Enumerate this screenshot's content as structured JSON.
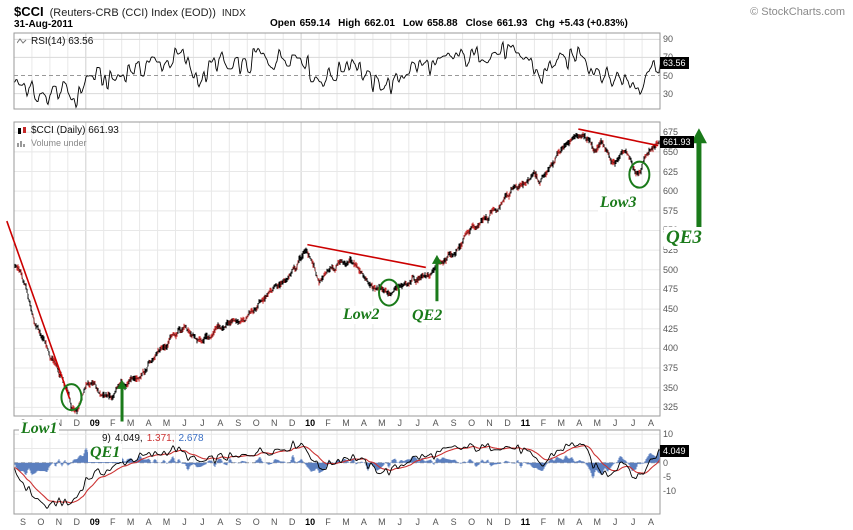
{
  "header": {
    "symbol": "$CCI",
    "name": "(Reuters-CRB (CCI) Index (EOD))",
    "exchange": "INDX",
    "copyright": "© StockCharts.com",
    "date": "31-Aug-2011",
    "quote": [
      {
        "label": "Open",
        "value": "659.14"
      },
      {
        "label": "High",
        "value": "662.01"
      },
      {
        "label": "Low",
        "value": "658.88"
      },
      {
        "label": "Close",
        "value": "661.93"
      },
      {
        "label": "Chg",
        "value": "+5.43 (+0.83%)"
      }
    ]
  },
  "rsi_panel": {
    "legend": "RSI(14) 63.56",
    "current_label": "63.56",
    "ticks": [
      90,
      70,
      50,
      30
    ]
  },
  "main_panel": {
    "legend": "$CCI (Daily) 661.93",
    "sublegend": "Volume under",
    "current_label": "661.93",
    "ticks": [
      675,
      650,
      625,
      600,
      575,
      550,
      525,
      500,
      475,
      450,
      425,
      400,
      375,
      350,
      325
    ]
  },
  "macd_panel": {
    "legend_prefix": "9)",
    "macd_value": "4.049,",
    "signal_value": "1.371,",
    "hist_value": "2.678",
    "current_label": "4.049",
    "ticks": [
      10,
      5,
      0,
      -5,
      -10
    ]
  },
  "x_axis": {
    "labels": [
      "S",
      "O",
      "N",
      "D",
      "09",
      "F",
      "M",
      "A",
      "M",
      "J",
      "J",
      "A",
      "S",
      "O",
      "N",
      "D",
      "10",
      "F",
      "M",
      "A",
      "M",
      "J",
      "J",
      "A",
      "S",
      "O",
      "N",
      "D",
      "11",
      "F",
      "M",
      "A",
      "M",
      "J",
      "J",
      "A"
    ],
    "year_labels": [
      "09",
      "10",
      "11"
    ]
  },
  "annotations": {
    "low1": "Low1",
    "qe1": "QE1",
    "low2": "Low2",
    "qe2": "QE2",
    "low3": "Low3",
    "qe3": "QE3"
  },
  "colors": {
    "up_candle": "#000000",
    "down_candle": "#c62828",
    "trendline": "#cc0000",
    "annotation_green": "#1a7a1a",
    "macd_line": "#000000",
    "signal_line": "#cc3333",
    "histogram": "#5b7fbf",
    "label_box_bg": "#000000",
    "label_box_text": "#ffffff"
  },
  "chart_data": [
    {
      "id": "price",
      "type": "candlestick",
      "title": "$CCI (Daily)",
      "x_unit": "months since Sep-2008 (0 = Sep-2008, 36 = end Aug-2011)",
      "x_range": [
        0,
        36
      ],
      "ylim": [
        314,
        688
      ],
      "y_ticks": [
        675,
        650,
        625,
        600,
        575,
        550,
        525,
        500,
        475,
        450,
        425,
        400,
        375,
        350,
        325
      ],
      "last_close": 661.93,
      "anchors": [
        [
          0,
          505
        ],
        [
          0.4,
          492
        ],
        [
          0.8,
          462
        ],
        [
          1.2,
          432
        ],
        [
          1.6,
          415
        ],
        [
          2,
          392
        ],
        [
          2.4,
          372
        ],
        [
          2.8,
          352
        ],
        [
          3.2,
          326
        ],
        [
          3.5,
          322
        ],
        [
          3.8,
          342
        ],
        [
          4.1,
          356
        ],
        [
          4.5,
          350
        ],
        [
          5,
          342
        ],
        [
          5.5,
          338
        ],
        [
          6,
          352
        ],
        [
          6.5,
          360
        ],
        [
          7,
          366
        ],
        [
          7.5,
          380
        ],
        [
          8,
          394
        ],
        [
          8.5,
          404
        ],
        [
          9,
          420
        ],
        [
          9.4,
          428
        ],
        [
          9.8,
          420
        ],
        [
          10.2,
          410
        ],
        [
          10.6,
          416
        ],
        [
          11,
          420
        ],
        [
          11.5,
          426
        ],
        [
          12,
          430
        ],
        [
          12.5,
          428
        ],
        [
          13,
          444
        ],
        [
          13.5,
          456
        ],
        [
          14,
          464
        ],
        [
          14.5,
          474
        ],
        [
          15,
          482
        ],
        [
          15.5,
          494
        ],
        [
          16,
          512
        ],
        [
          16.35,
          528
        ],
        [
          16.7,
          506
        ],
        [
          17,
          486
        ],
        [
          17.4,
          494
        ],
        [
          17.8,
          500
        ],
        [
          18.2,
          505
        ],
        [
          18.6,
          508
        ],
        [
          19,
          504
        ],
        [
          19.4,
          497
        ],
        [
          19.8,
          488
        ],
        [
          20.2,
          478
        ],
        [
          20.6,
          473
        ],
        [
          21,
          468
        ],
        [
          21.4,
          474
        ],
        [
          21.8,
          480
        ],
        [
          22.2,
          486
        ],
        [
          22.6,
          492
        ],
        [
          23,
          494
        ],
        [
          23.4,
          503
        ],
        [
          23.8,
          510
        ],
        [
          24.2,
          518
        ],
        [
          24.6,
          528
        ],
        [
          25,
          538
        ],
        [
          25.4,
          548
        ],
        [
          25.8,
          556
        ],
        [
          26.2,
          564
        ],
        [
          26.6,
          572
        ],
        [
          27,
          582
        ],
        [
          27.4,
          592
        ],
        [
          27.8,
          600
        ],
        [
          28.2,
          606
        ],
        [
          28.6,
          614
        ],
        [
          29,
          622
        ],
        [
          29.3,
          612
        ],
        [
          29.7,
          626
        ],
        [
          30.1,
          638
        ],
        [
          30.5,
          646
        ],
        [
          30.9,
          654
        ],
        [
          31.3,
          664
        ],
        [
          31.7,
          674
        ],
        [
          32,
          668
        ],
        [
          32.3,
          652
        ],
        [
          32.7,
          660
        ],
        [
          33.1,
          650
        ],
        [
          33.5,
          642
        ],
        [
          33.9,
          650
        ],
        [
          34.3,
          640
        ],
        [
          34.6,
          624
        ],
        [
          34.8,
          618
        ],
        [
          35,
          634
        ],
        [
          35.3,
          646
        ],
        [
          35.6,
          652
        ],
        [
          35.97,
          661.93
        ]
      ],
      "trendlines": [
        [
          [
            -0.4,
            562
          ],
          [
            3.1,
            336
          ]
        ],
        [
          [
            16.35,
            532
          ],
          [
            22.95,
            503
          ]
        ],
        [
          [
            31.45,
            679
          ],
          [
            35.9,
            658
          ]
        ]
      ],
      "event_marks": [
        {
          "label": "Low1",
          "type": "circle",
          "t": 3.2,
          "value": 338
        },
        {
          "label": "QE1",
          "type": "arrow-up",
          "t": 6.02,
          "value_from": 307,
          "value_to": 360
        },
        {
          "label": "Low2",
          "type": "circle",
          "t": 20.9,
          "value": 471
        },
        {
          "label": "QE2",
          "type": "arrow-up",
          "t": 23.57,
          "value_from": 460,
          "value_to": 519
        },
        {
          "label": "Low3",
          "type": "circle",
          "t": 34.85,
          "value": 621
        },
        {
          "label": "QE3",
          "type": "arrow-up",
          "t": 38.17,
          "value_from": 545,
          "value_to": 680
        }
      ]
    },
    {
      "id": "rsi",
      "type": "line",
      "title": "RSI(14)",
      "ylim": [
        13,
        97
      ],
      "y_ticks": [
        90,
        70,
        50,
        30
      ],
      "midline": 50,
      "overbought": 70,
      "oversold": 30,
      "last_value": 63.56,
      "anchors": [
        [
          0,
          42
        ],
        [
          0.8,
          32
        ],
        [
          1.6,
          28
        ],
        [
          2.4,
          30
        ],
        [
          3.2,
          26
        ],
        [
          3.6,
          32
        ],
        [
          4,
          48
        ],
        [
          4.6,
          42
        ],
        [
          5.2,
          40
        ],
        [
          5.8,
          50
        ],
        [
          6.4,
          58
        ],
        [
          7,
          60
        ],
        [
          7.6,
          62
        ],
        [
          8.2,
          66
        ],
        [
          8.8,
          68
        ],
        [
          9.4,
          70
        ],
        [
          10,
          52
        ],
        [
          10.6,
          48
        ],
        [
          11.2,
          58
        ],
        [
          11.8,
          60
        ],
        [
          12.4,
          58
        ],
        [
          13,
          64
        ],
        [
          13.6,
          68
        ],
        [
          14.2,
          66
        ],
        [
          14.8,
          70
        ],
        [
          15.4,
          72
        ],
        [
          16,
          74
        ],
        [
          16.4,
          66
        ],
        [
          17,
          42
        ],
        [
          17.6,
          52
        ],
        [
          18.2,
          58
        ],
        [
          18.8,
          62
        ],
        [
          19.4,
          54
        ],
        [
          20,
          46
        ],
        [
          20.6,
          42
        ],
        [
          21.2,
          40
        ],
        [
          21.8,
          52
        ],
        [
          22.4,
          58
        ],
        [
          23,
          60
        ],
        [
          23.6,
          64
        ],
        [
          24.2,
          68
        ],
        [
          24.8,
          72
        ],
        [
          25.4,
          74
        ],
        [
          26,
          70
        ],
        [
          26.6,
          72
        ],
        [
          27.2,
          74
        ],
        [
          27.8,
          70
        ],
        [
          28.4,
          68
        ],
        [
          29,
          58
        ],
        [
          29.4,
          50
        ],
        [
          30,
          64
        ],
        [
          30.6,
          70
        ],
        [
          31.2,
          72
        ],
        [
          31.8,
          74
        ],
        [
          32.2,
          60
        ],
        [
          32.8,
          48
        ],
        [
          33.4,
          42
        ],
        [
          34,
          52
        ],
        [
          34.6,
          38
        ],
        [
          34.9,
          32
        ],
        [
          35.3,
          55
        ],
        [
          35.7,
          60
        ],
        [
          35.97,
          63.56
        ]
      ]
    },
    {
      "id": "macd",
      "type": "line+histogram",
      "legend_visible": "9) 4.049, 1.371, 2.678",
      "ylim": [
        -18,
        11.5
      ],
      "y_ticks": [
        10,
        5,
        0,
        -5,
        -10
      ],
      "last_values": {
        "macd": 4.049,
        "signal": 1.371,
        "histogram": 2.678
      },
      "anchors": [
        [
          0,
          -3
        ],
        [
          0.5,
          -7
        ],
        [
          1,
          -11
        ],
        [
          1.5,
          -14
        ],
        [
          2,
          -16
        ],
        [
          2.5,
          -13
        ],
        [
          3,
          -15
        ],
        [
          3.5,
          -12
        ],
        [
          4,
          -6
        ],
        [
          4.5,
          -4
        ],
        [
          5,
          -3
        ],
        [
          5.5,
          -2
        ],
        [
          6,
          0
        ],
        [
          6.5,
          1
        ],
        [
          7,
          2
        ],
        [
          7.5,
          2.5
        ],
        [
          8,
          3
        ],
        [
          8.5,
          4
        ],
        [
          9,
          5
        ],
        [
          9.5,
          3
        ],
        [
          10,
          1
        ],
        [
          10.5,
          0
        ],
        [
          11,
          1
        ],
        [
          11.5,
          2
        ],
        [
          12,
          2
        ],
        [
          12.5,
          1.5
        ],
        [
          13,
          3
        ],
        [
          13.5,
          4
        ],
        [
          14,
          4
        ],
        [
          14.5,
          4.5
        ],
        [
          15,
          5
        ],
        [
          15.5,
          6
        ],
        [
          16,
          7
        ],
        [
          16.5,
          3
        ],
        [
          17,
          -2
        ],
        [
          17.5,
          -1
        ],
        [
          18,
          1
        ],
        [
          18.5,
          2
        ],
        [
          19,
          2
        ],
        [
          19.5,
          0
        ],
        [
          20,
          -2
        ],
        [
          20.5,
          -3
        ],
        [
          21,
          -3
        ],
        [
          21.5,
          -1
        ],
        [
          22,
          1
        ],
        [
          22.5,
          2
        ],
        [
          23,
          2
        ],
        [
          23.5,
          3
        ],
        [
          24,
          4
        ],
        [
          24.5,
          5
        ],
        [
          25,
          5
        ],
        [
          25.5,
          5.5
        ],
        [
          26,
          5
        ],
        [
          26.5,
          5.5
        ],
        [
          27,
          6
        ],
        [
          27.5,
          5.5
        ],
        [
          28,
          5
        ],
        [
          28.5,
          4
        ],
        [
          29,
          1
        ],
        [
          29.5,
          -1
        ],
        [
          30,
          3
        ],
        [
          30.5,
          5
        ],
        [
          31,
          6
        ],
        [
          31.5,
          7
        ],
        [
          32,
          3
        ],
        [
          32.3,
          -1
        ],
        [
          32.7,
          -3
        ],
        [
          33.1,
          -4
        ],
        [
          33.5,
          -2
        ],
        [
          33.9,
          1
        ],
        [
          34.3,
          -2
        ],
        [
          34.7,
          -6
        ],
        [
          35.1,
          -3
        ],
        [
          35.5,
          1
        ],
        [
          35.97,
          4.049
        ]
      ]
    }
  ]
}
